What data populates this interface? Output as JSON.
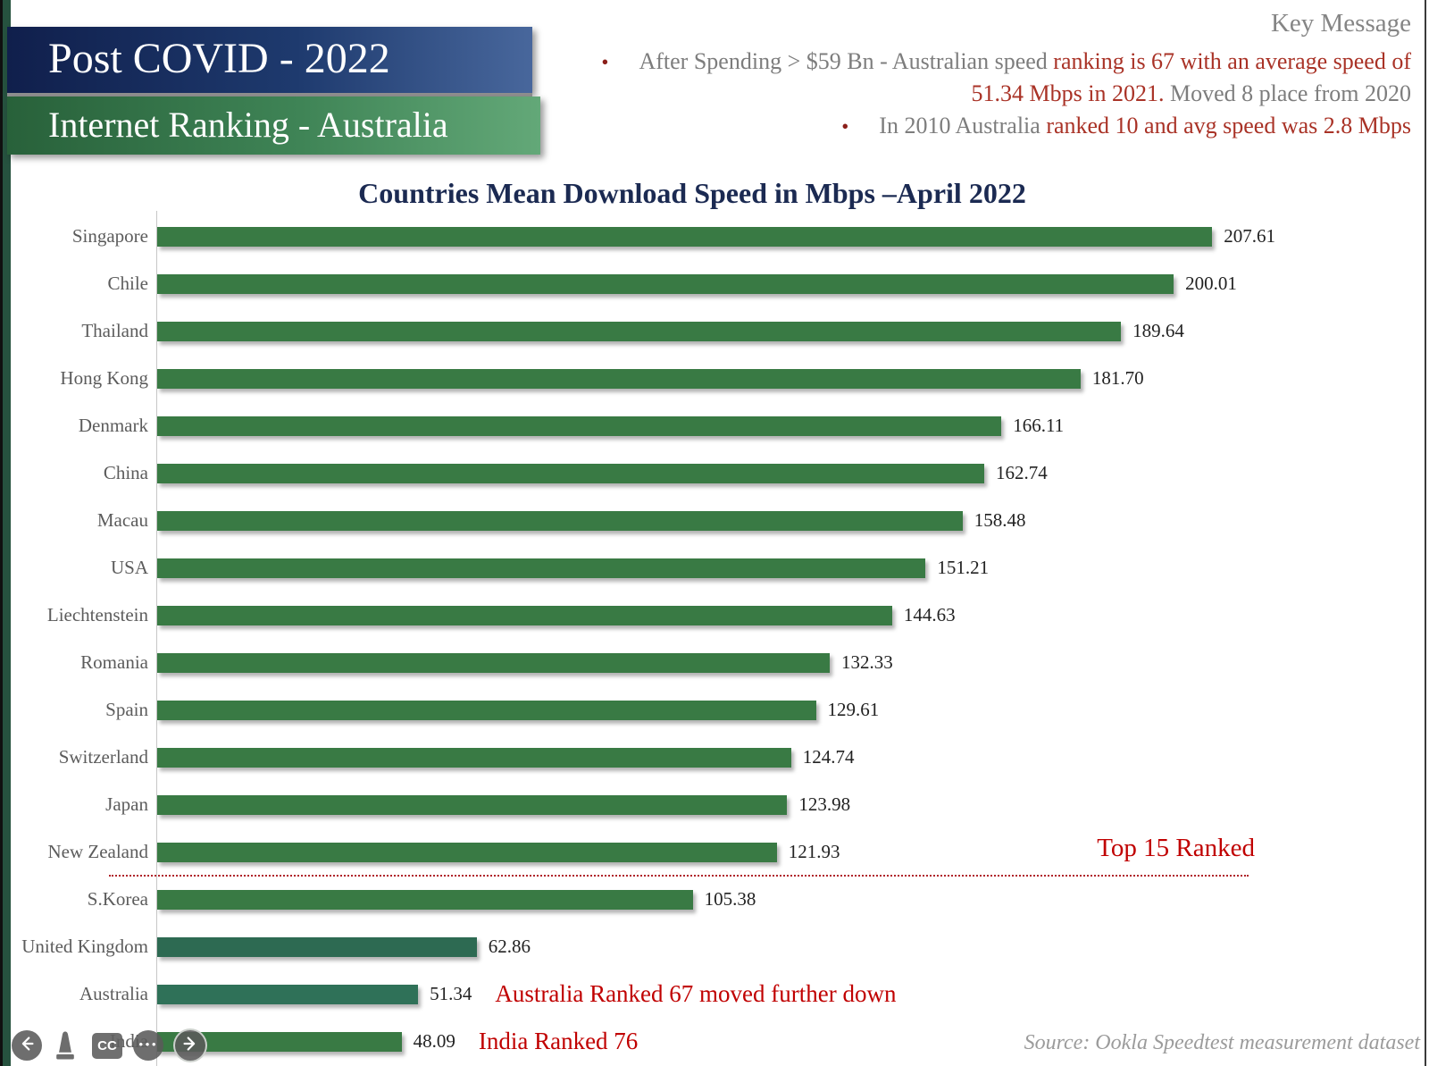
{
  "page": {
    "background": "#ffffff",
    "edge_strip_color": "#26523f"
  },
  "header": {
    "title": "Post COVID - 2022",
    "subtitle": "Internet Ranking - Australia",
    "title_bg": [
      "#101f4c",
      "#48679c"
    ],
    "subtitle_bg": [
      "#28613a",
      "#63a878"
    ]
  },
  "key_message": {
    "heading": "Key Message",
    "text_color": "#7d7d7d",
    "emph_color": "#a93226",
    "bullet_color": "#8b1f1a",
    "bullets": [
      {
        "segments": [
          {
            "text": "After Spending > $59 Bn  - Australian speed ",
            "emph": false
          },
          {
            "text": "ranking is 67 with an average speed of 51.34 Mbps in 2021.",
            "emph": true
          },
          {
            "text": " Moved 8 place from 2020",
            "emph": false
          }
        ]
      },
      {
        "segments": [
          {
            "text": "In 2010 Australia ",
            "emph": false
          },
          {
            "text": "ranked 10 and avg speed was 2.8 Mbps",
            "emph": true
          }
        ]
      }
    ]
  },
  "chart_data": {
    "type": "bar",
    "orientation": "horizontal",
    "title": "Countries Mean Download Speed in Mbps –April 2022",
    "unit": "Mbps",
    "xlim": [
      0,
      225
    ],
    "grid": false,
    "legend": false,
    "categories": [
      "Singapore",
      "Chile",
      "Thailand",
      "Hong Kong",
      "Denmark",
      "China",
      "Macau",
      "USA",
      "Liechtenstein",
      "Romania",
      "Spain",
      "Switzerland",
      "Japan",
      "New Zealand",
      "S.Korea",
      "United Kingdom",
      "Australia",
      "India"
    ],
    "values": [
      207.61,
      200.01,
      189.64,
      181.7,
      166.11,
      162.74,
      158.48,
      151.21,
      144.63,
      132.33,
      129.61,
      124.74,
      123.98,
      121.93,
      105.38,
      62.86,
      51.34,
      48.09
    ],
    "value_labels": [
      "207.61",
      "200.01",
      "189.64",
      "181.70",
      "166.11",
      "162.74",
      "158.48",
      "151.21",
      "144.63",
      "132.33",
      "129.61",
      "124.74",
      "123.98",
      "121.93",
      "105.38",
      "62.86",
      "51.34",
      "48.09"
    ],
    "bar_colors": {
      "default": "#397a44",
      "United Kingdom": "#2d6a52",
      "Australia": "#2f7158"
    },
    "annotation_color": "#c00000",
    "annotations": [
      {
        "target": "Australia",
        "text": "Australia Ranked 67 moved further down"
      },
      {
        "target": "India",
        "text": "India Ranked 76"
      }
    ],
    "divider": {
      "label": "Top 15 Ranked",
      "after_category": "New Zealand",
      "style": "red-dotted"
    }
  },
  "source": {
    "text": "Source: Ookla Speedtest measurement dataset"
  },
  "player_controls": {
    "captions_label": "CC",
    "buttons": [
      "back",
      "pointer",
      "captions",
      "more-options",
      "next"
    ]
  }
}
